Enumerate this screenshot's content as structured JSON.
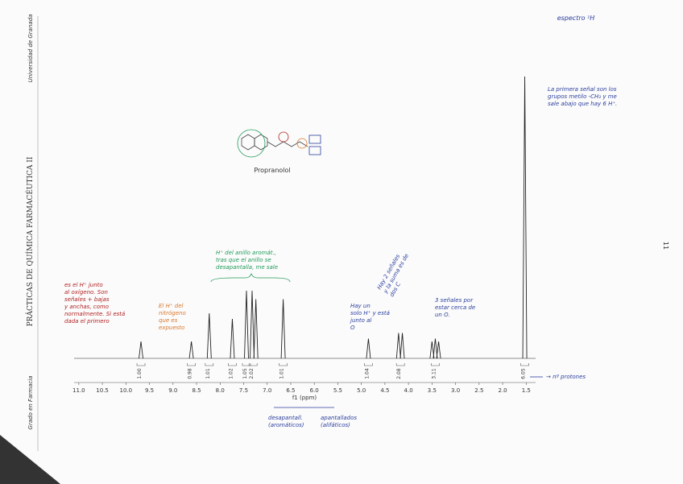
{
  "page": {
    "header_note": "espectro ¹H",
    "side_title": "PRÁCTICAS DE QUÍMICA FARMACÉUTICA II",
    "side_bottom": "Grado en Farmacia",
    "side_top": "Universidad de Granada",
    "page_number": "11"
  },
  "chart_data": {
    "type": "spectrum",
    "title": "Propranolol",
    "x_label": "f1 (ppm)",
    "xlim": [
      11.1,
      1.3
    ],
    "xticks": [
      {
        "value": 11,
        "label": "11.0"
      },
      10.5,
      {
        "value": 10,
        "label": "10.0"
      },
      9.5,
      {
        "value": 9,
        "label": "9.0"
      },
      8.5,
      {
        "value": 8,
        "label": "8.0"
      },
      7.5,
      {
        "value": 7,
        "label": "7.0"
      },
      6.5,
      {
        "value": 6,
        "label": "6.0"
      },
      5.5,
      {
        "value": 5,
        "label": "5.0"
      },
      4.5,
      {
        "value": 4,
        "label": "4.0"
      },
      3.5,
      {
        "value": 3,
        "label": "3.0"
      },
      2.5,
      {
        "value": 2,
        "label": "2.0"
      },
      1.5
    ],
    "ylim": [
      0,
      100
    ],
    "color": "#222222",
    "peaks": [
      {
        "ppm": 9.68,
        "intensity": 6
      },
      {
        "ppm": 8.61,
        "intensity": 6
      },
      {
        "ppm": 8.23,
        "intensity": 16
      },
      {
        "ppm": 7.74,
        "intensity": 14
      },
      {
        "ppm": 7.44,
        "intensity": 24
      },
      {
        "ppm": 7.32,
        "intensity": 24
      },
      {
        "ppm": 7.24,
        "intensity": 21
      },
      {
        "ppm": 6.66,
        "intensity": 21
      },
      {
        "ppm": 4.85,
        "intensity": 7
      },
      {
        "ppm": 4.21,
        "intensity": 9
      },
      {
        "ppm": 4.13,
        "intensity": 9
      },
      {
        "ppm": 3.5,
        "intensity": 6
      },
      {
        "ppm": 3.43,
        "intensity": 7
      },
      {
        "ppm": 3.36,
        "intensity": 6
      },
      {
        "ppm": 1.53,
        "intensity": 100
      }
    ],
    "integrals": [
      {
        "ppm": 9.68,
        "label": "1.00"
      },
      {
        "ppm": 8.61,
        "label": "0.98"
      },
      {
        "ppm": 8.23,
        "label": "1.01"
      },
      {
        "ppm": 7.74,
        "label": "1.02"
      },
      {
        "ppm": 7.44,
        "label": "1.05"
      },
      {
        "ppm": 7.3,
        "label": "2.02"
      },
      {
        "ppm": 6.66,
        "label": "1.01"
      },
      {
        "ppm": 4.85,
        "label": "1.04"
      },
      {
        "ppm": 4.17,
        "label": "2.08"
      },
      {
        "ppm": 3.43,
        "label": "3.11"
      },
      {
        "ppm": 1.53,
        "label": "6.05"
      }
    ],
    "annotations": [
      {
        "color": "#b22222",
        "lines": [
          "es el H⁺ junto",
          "al oxígeno. Son",
          "señales + bajas",
          "y anchas, como",
          "normalmente. Si está",
          "dada el primero"
        ]
      },
      {
        "color": "#d9772b",
        "lines": [
          "El H⁺ del",
          "nitrógeno",
          "que es",
          "expuesto"
        ]
      },
      {
        "color": "#1f9a5a",
        "lines": [
          "H⁺ del anillo aromát.,",
          "tras que el anillo se",
          "desapantalla, me sale"
        ]
      },
      {
        "color": "#2b3f9e",
        "lines": [
          "Hay un",
          "solo H⁺ y está",
          "junto al",
          "O"
        ]
      },
      {
        "color": "#2b3f9e",
        "lines": [
          "Hay 2 señales",
          "y la suma es de",
          "dos C"
        ]
      },
      {
        "color": "#2b3f9e",
        "lines": [
          "3 señales por",
          "estar cerca de",
          "un O."
        ]
      },
      {
        "color": "#2b3f9e",
        "lines": [
          "La primera señal son los",
          "grupos metilo -CH₃ y me",
          "sale abajo que hay 6 H⁺."
        ]
      },
      {
        "color": "#2b3f9e",
        "lines": [
          "→ nº protones"
        ]
      },
      {
        "color": "#2b3f9e",
        "lines": [
          "desapantall.",
          "(aromáticos)"
        ]
      },
      {
        "color": "#2b3f9e",
        "lines": [
          "apantallados",
          "(alifáticos)"
        ]
      }
    ]
  }
}
